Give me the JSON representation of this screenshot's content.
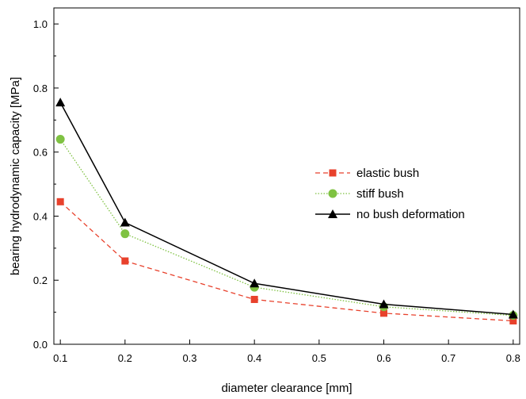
{
  "chart_data": {
    "type": "line",
    "xlabel": "diameter clearance  [mm]",
    "ylabel": "bearing hydrodynamic capacity  [MPa]",
    "xlim": [
      0.09,
      0.81
    ],
    "ylim": [
      0.0,
      1.05
    ],
    "x_ticks": [
      0.1,
      0.2,
      0.3,
      0.4,
      0.5,
      0.6,
      0.7,
      0.8
    ],
    "x_tick_labels": [
      "0.1",
      "0.2",
      "0.3",
      "0.4",
      "0.5",
      "0.6",
      "0.7",
      "0.8"
    ],
    "y_ticks": [
      0.0,
      0.2,
      0.4,
      0.6,
      0.8,
      1.0
    ],
    "y_tick_labels": [
      "0.0",
      "0.2",
      "0.4",
      "0.6",
      "0.8",
      "1.0"
    ],
    "grid": false,
    "legend_position": "right-center",
    "x": [
      0.1,
      0.2,
      0.4,
      0.6,
      0.8
    ],
    "series": [
      {
        "name": "elastic bush",
        "color": "#e8412c",
        "marker": "square",
        "line": "dashed",
        "values": [
          0.445,
          0.26,
          0.14,
          0.097,
          0.073
        ]
      },
      {
        "name": "stiff bush",
        "color": "#7fc242",
        "marker": "circle",
        "line": "dotted",
        "values": [
          0.64,
          0.345,
          0.178,
          0.117,
          0.09
        ]
      },
      {
        "name": "no bush deformation",
        "color": "#000000",
        "marker": "triangle",
        "line": "solid",
        "values": [
          0.755,
          0.38,
          0.19,
          0.125,
          0.093
        ]
      }
    ]
  }
}
